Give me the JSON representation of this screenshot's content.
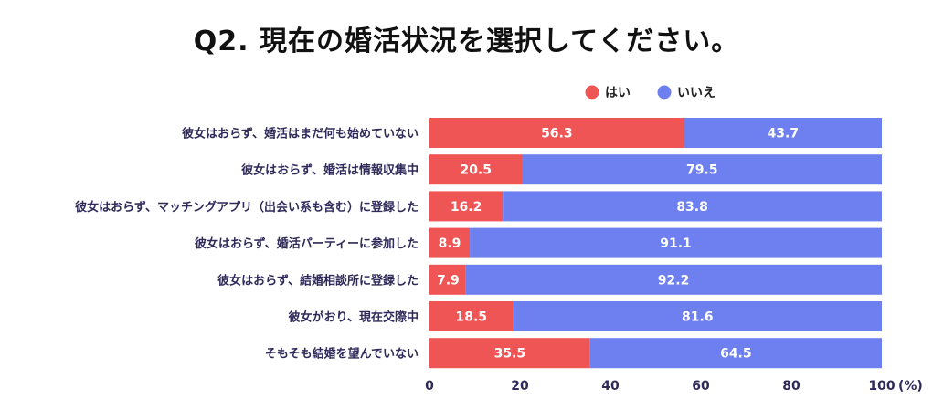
{
  "chart_data": {
    "type": "bar",
    "orientation": "horizontal",
    "stacked": true,
    "title": "Q2. 現在の婚活状況を選択してください。",
    "categories": [
      "彼女はおらず、婚活はまだ何も始めていない",
      "彼女はおらず、婚活は情報収集中",
      "彼女はおらず、マッチングアプリ（出会い系も含む）に登録した",
      "彼女はおらず、婚活パーティーに参加した",
      "彼女はおらず、結婚相談所に登録した",
      "彼女がおり、現在交際中",
      "そもそも結婚を望んでいない"
    ],
    "series": [
      {
        "name": "はい",
        "color": "#ef5555",
        "values": [
          56.3,
          20.5,
          16.2,
          8.9,
          7.9,
          18.5,
          35.5
        ]
      },
      {
        "name": "いいえ",
        "color": "#6e80f0",
        "values": [
          43.7,
          79.5,
          83.8,
          91.1,
          92.2,
          81.6,
          64.5
        ]
      }
    ],
    "xlim": [
      0,
      100
    ],
    "xticks": [
      "0",
      "20",
      "40",
      "60",
      "80",
      "100"
    ],
    "unit_label": "(%)",
    "legend_position": "top-right",
    "grid": false
  }
}
